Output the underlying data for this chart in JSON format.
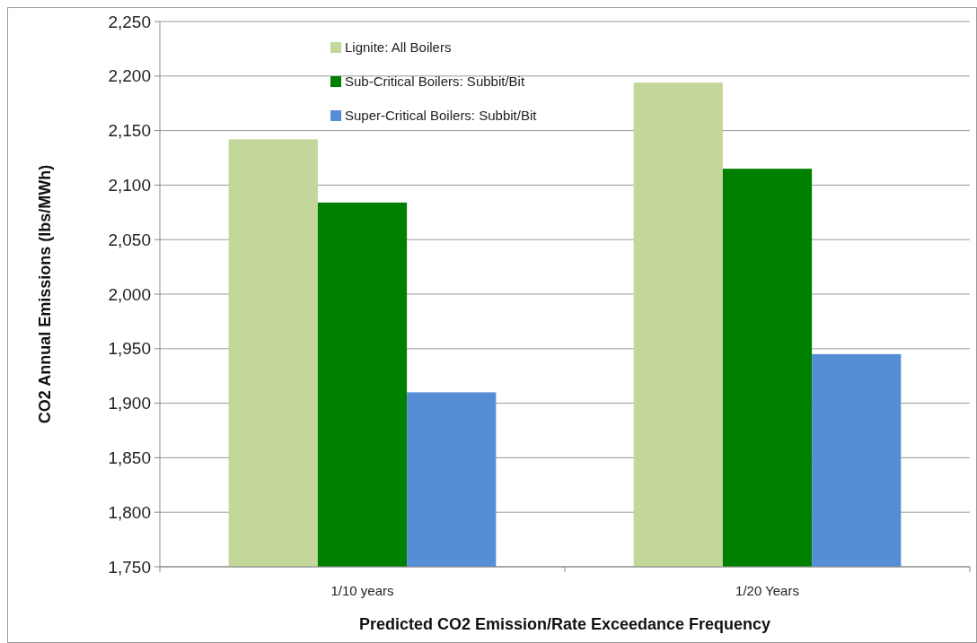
{
  "chart_data": {
    "type": "bar",
    "xlabel": "Predicted CO2 Emission/Rate Exceedance Frequency",
    "ylabel": "CO2 Annual Emissions (lbs/MWh)",
    "categories": [
      "1/10 years",
      "1/20 Years"
    ],
    "series": [
      {
        "name": "Lignite:  All Boilers",
        "color": "#c4d79b",
        "values": [
          2142,
          2194
        ]
      },
      {
        "name": "Sub-Critical Boilers:  Subbit/Bit",
        "color": "#008000",
        "values": [
          2084,
          2115
        ]
      },
      {
        "name": "Super-Critical Boilers: Subbit/Bit",
        "color": "#558ed5",
        "values": [
          1910,
          1945
        ]
      }
    ],
    "ylim": [
      1750,
      2250
    ],
    "yticks": [
      {
        "value": 1750,
        "label": "1,750"
      },
      {
        "value": 1800,
        "label": "1,800"
      },
      {
        "value": 1850,
        "label": "1,850"
      },
      {
        "value": 1900,
        "label": "1,900"
      },
      {
        "value": 1950,
        "label": "1,950"
      },
      {
        "value": 2000,
        "label": "2,000"
      },
      {
        "value": 2050,
        "label": "2,050"
      },
      {
        "value": 2100,
        "label": "2,100"
      },
      {
        "value": 2150,
        "label": "2,150"
      },
      {
        "value": 2200,
        "label": "2,200"
      },
      {
        "value": 2250,
        "label": "2,250"
      }
    ],
    "grid": "y",
    "legend": "top"
  }
}
